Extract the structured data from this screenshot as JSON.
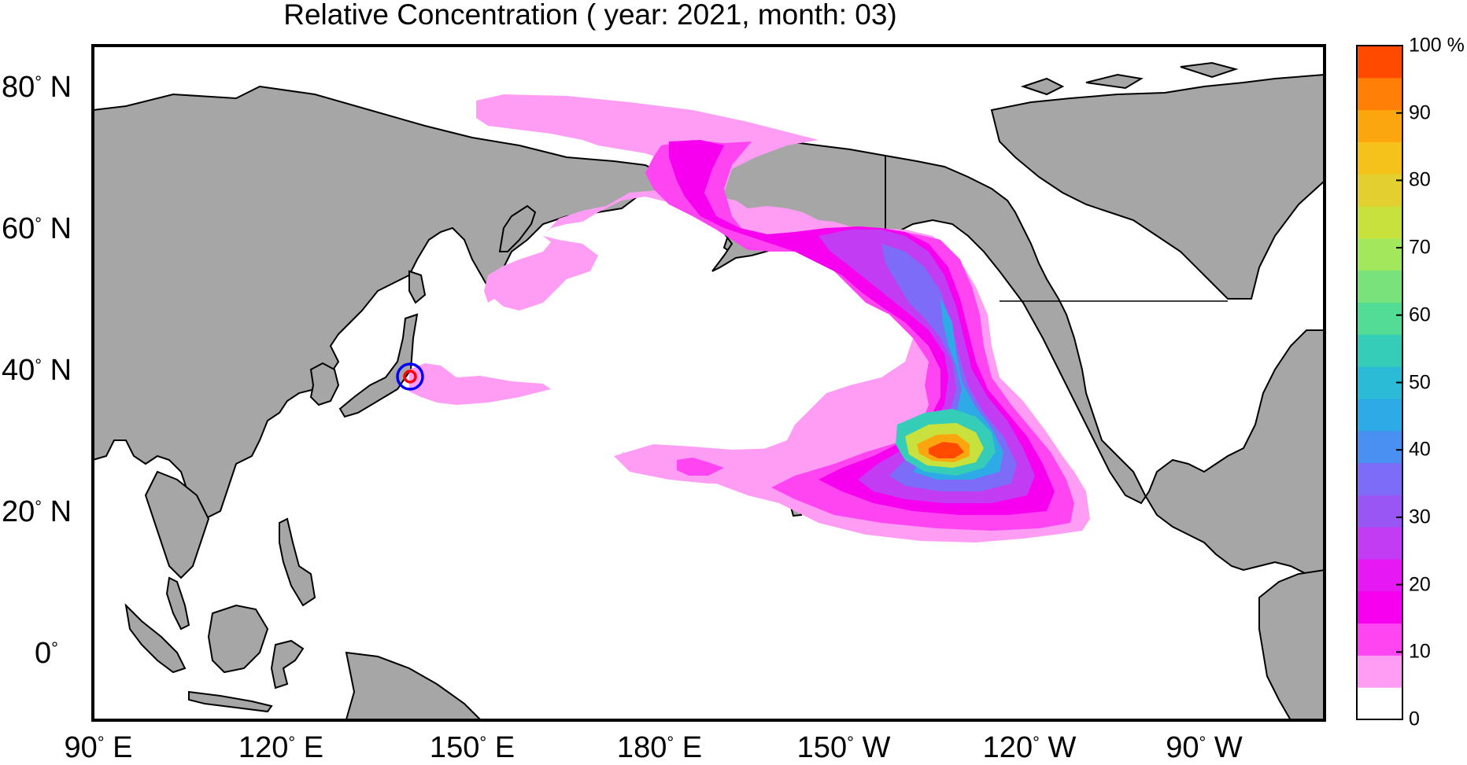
{
  "title": "Relative Concentration ( year: 2021, month: 03)",
  "latitude_labels": [
    {
      "value": "80",
      "hemi": "N"
    },
    {
      "value": "60",
      "hemi": "N"
    },
    {
      "value": "40",
      "hemi": "N"
    },
    {
      "value": "20",
      "hemi": "N"
    },
    {
      "value": "0",
      "hemi": ""
    }
  ],
  "longitude_labels": [
    {
      "value": "90",
      "hemi": "E"
    },
    {
      "value": "120",
      "hemi": "E"
    },
    {
      "value": "150",
      "hemi": "E"
    },
    {
      "value": "180",
      "hemi": "E"
    },
    {
      "value": "150",
      "hemi": "W"
    },
    {
      "value": "120",
      "hemi": "W"
    },
    {
      "value": "90",
      "hemi": "W"
    }
  ],
  "colorbar": {
    "unit": "%",
    "tick_labels": [
      "0",
      "10",
      "20",
      "30",
      "40",
      "50",
      "60",
      "70",
      "80",
      "90",
      "100 %"
    ],
    "colors": [
      "#ffffff",
      "#ff9cf4",
      "#ff44f2",
      "#f700ef",
      "#e619f5",
      "#c23cf3",
      "#9a55f5",
      "#7c6cf7",
      "#4a8ff2",
      "#2eaae6",
      "#2bbbd6",
      "#36cdb8",
      "#52dc95",
      "#7ae27b",
      "#a3e85c",
      "#c8e13c",
      "#e3d030",
      "#f5c21c",
      "#fba60f",
      "#ff7f07",
      "#ff4a00"
    ]
  },
  "release_site": {
    "lon": 141.0,
    "lat": 37.4,
    "marker": "circle-target-icon"
  },
  "plume_intensity_scale": [
    5,
    15,
    25,
    35,
    50,
    65,
    80,
    95
  ]
}
